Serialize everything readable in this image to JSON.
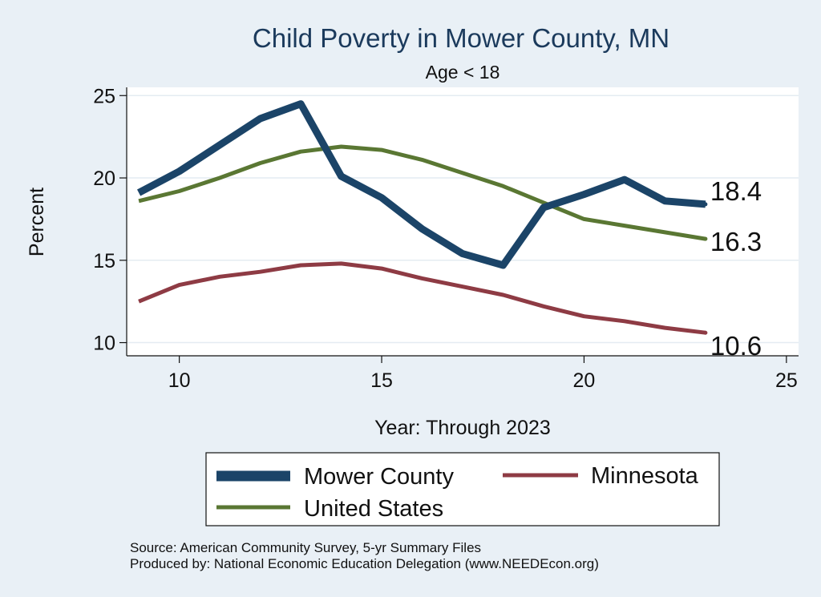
{
  "chart_data": {
    "type": "line",
    "title": "Child Poverty in Mower County, MN",
    "subtitle": "Age < 18",
    "xlabel": "Year: Through 2023",
    "ylabel": "Percent",
    "xlim": [
      8.7,
      25.3
    ],
    "ylim": [
      9.2,
      25.5
    ],
    "xticks": [
      10,
      15,
      20,
      25
    ],
    "yticks": [
      10,
      15,
      20,
      25
    ],
    "grid": true,
    "legend_position": "bottom",
    "x": [
      9,
      10,
      11,
      12,
      13,
      14,
      15,
      16,
      17,
      18,
      19,
      20,
      21,
      22,
      23
    ],
    "series": [
      {
        "name": "Mower County",
        "color": "#1b4468",
        "values": [
          19.1,
          20.4,
          22.0,
          23.6,
          24.5,
          20.1,
          18.8,
          16.9,
          15.4,
          14.7,
          18.2,
          19.0,
          19.9,
          18.6,
          18.4
        ],
        "end_label": "18.4"
      },
      {
        "name": "Minnesota",
        "color": "#8e3b44",
        "values": [
          12.5,
          13.5,
          14.0,
          14.3,
          14.7,
          14.8,
          14.5,
          13.9,
          13.4,
          12.9,
          12.2,
          11.6,
          11.3,
          10.9,
          10.6
        ],
        "end_label": "10.6"
      },
      {
        "name": "United States",
        "color": "#5a7733",
        "values": [
          18.6,
          19.2,
          20.0,
          20.9,
          21.6,
          21.9,
          21.7,
          21.1,
          20.3,
          19.5,
          18.5,
          17.5,
          17.1,
          16.7,
          16.3
        ],
        "end_label": "16.3"
      }
    ]
  },
  "footer": {
    "source": "Source: American Community Survey, 5-yr Summary Files",
    "producer": "Produced by: National Economic Education Delegation (www.NEEDEcon.org)"
  }
}
